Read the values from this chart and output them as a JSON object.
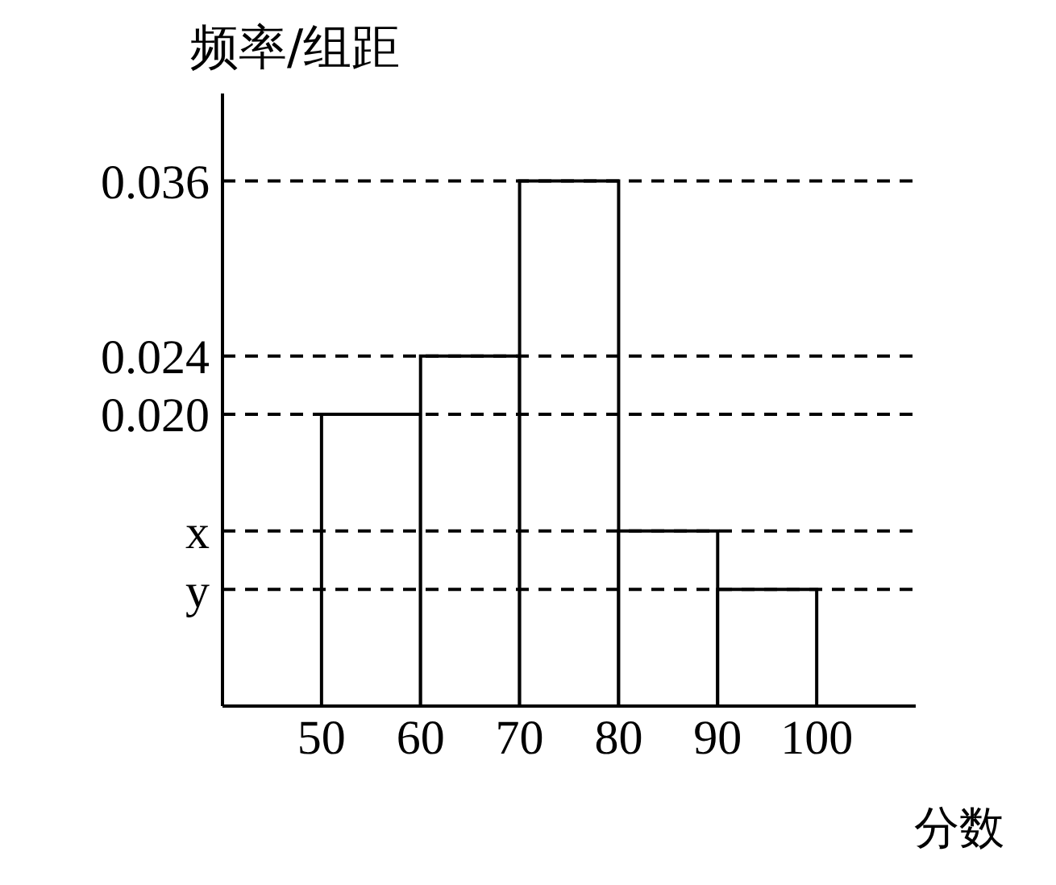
{
  "chart_data": {
    "type": "histogram",
    "ylabel": "频率/组距",
    "xlabel": "分数",
    "bins": [
      50,
      60,
      70,
      80,
      90,
      100
    ],
    "values": [
      0.02,
      0.024,
      0.036,
      0.012,
      0.008
    ],
    "color": "#ffffff",
    "xlim": [
      40,
      110
    ],
    "xticks": [
      50,
      60,
      70,
      80,
      90,
      100
    ],
    "ylim": [
      0,
      0.042
    ],
    "yticks": [
      {
        "value": 0.008,
        "label": "y"
      },
      {
        "value": 0.012,
        "label": "x"
      },
      {
        "value": 0.02,
        "label": "0.020"
      },
      0.024,
      0.036
    ],
    "grid": "y"
  }
}
